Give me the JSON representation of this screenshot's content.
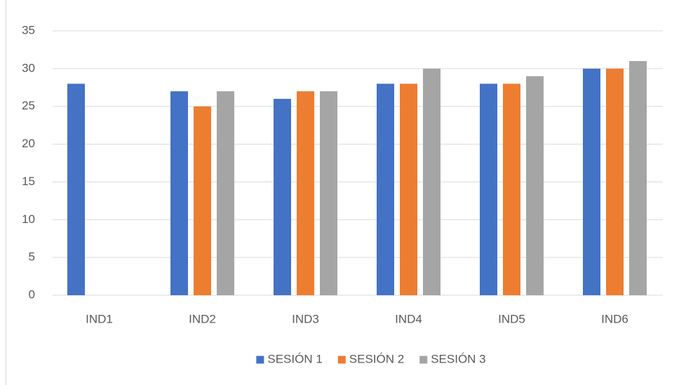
{
  "chart_data": {
    "type": "bar",
    "categories": [
      "IND1",
      "IND2",
      "IND3",
      "IND4",
      "IND5",
      "IND6"
    ],
    "series": [
      {
        "name": "SESIÓN 1",
        "color": "#4472c4",
        "values": [
          28,
          27,
          26,
          28,
          28,
          30
        ]
      },
      {
        "name": "SESIÓN 2",
        "color": "#ed7d31",
        "values": [
          null,
          25,
          27,
          28,
          28,
          30
        ]
      },
      {
        "name": "SESIÓN 3",
        "color": "#a5a5a5",
        "values": [
          null,
          27,
          27,
          30,
          29,
          31
        ]
      }
    ],
    "ylim": [
      0,
      35
    ],
    "yticks": [
      0,
      5,
      10,
      15,
      20,
      25,
      30,
      35
    ],
    "grid": true,
    "legend": "bottom"
  }
}
